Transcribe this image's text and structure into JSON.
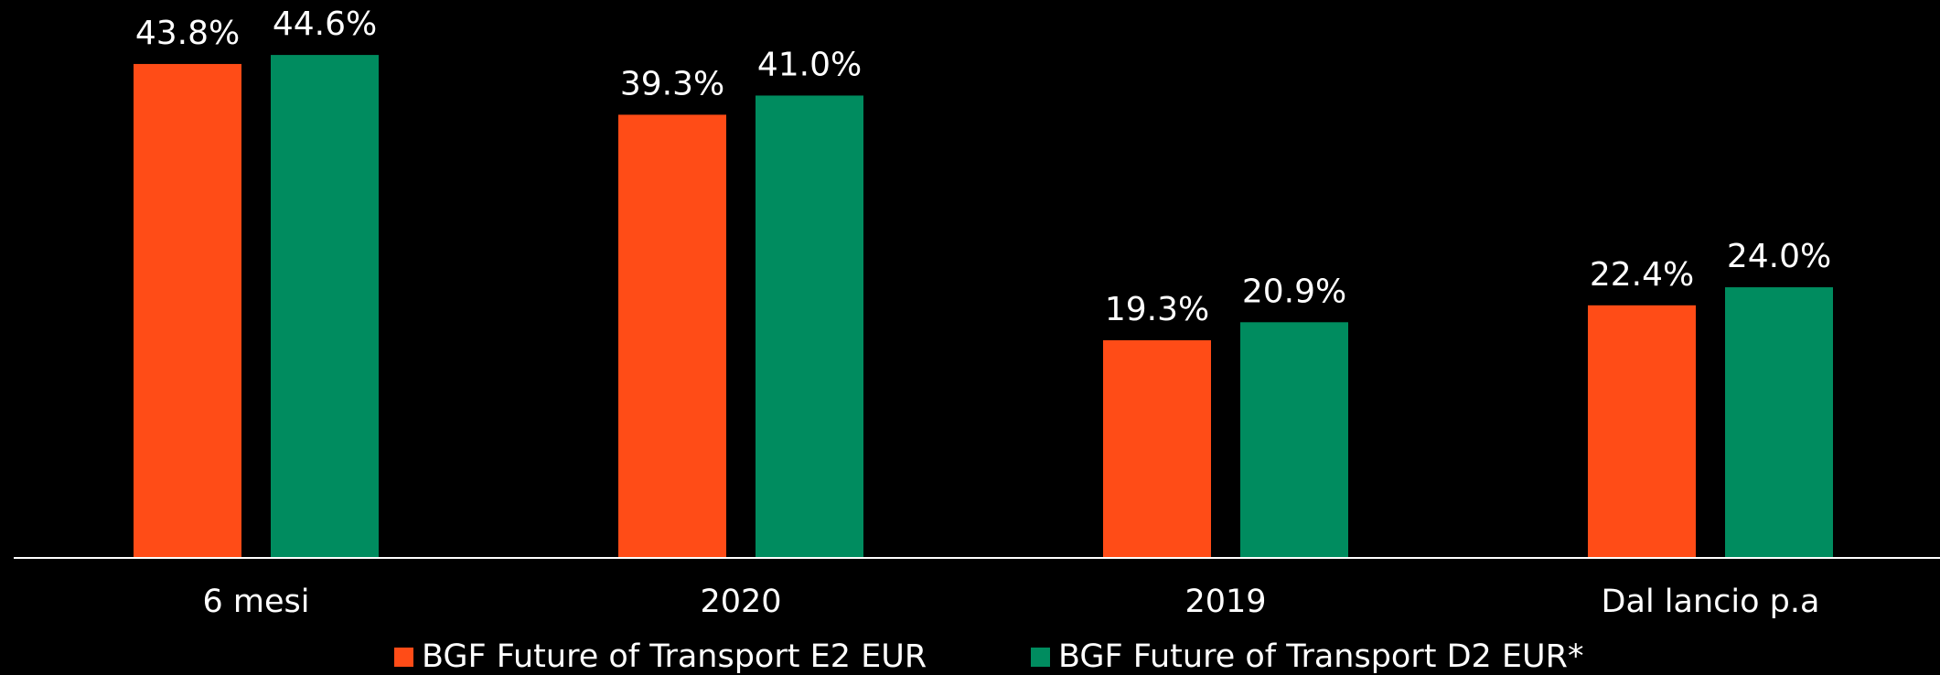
{
  "chart_data": {
    "type": "bar",
    "categories": [
      "6 mesi",
      "2020",
      "2019",
      "Dal lancio p.a"
    ],
    "series": [
      {
        "name": "BGF Future of Transport E2 EUR",
        "color": "#ff4c17",
        "values": [
          43.8,
          39.3,
          19.3,
          22.4
        ],
        "value_labels": [
          "43.8%",
          "39.3%",
          "19.3%",
          "22.4%"
        ]
      },
      {
        "name": "BGF Future of Transport D2 EUR*",
        "color": "#008c5f",
        "values": [
          44.6,
          41.0,
          20.9,
          24.0
        ],
        "value_labels": [
          "44.6%",
          "41.0%",
          "20.9%",
          "24.0%"
        ]
      }
    ]
  }
}
